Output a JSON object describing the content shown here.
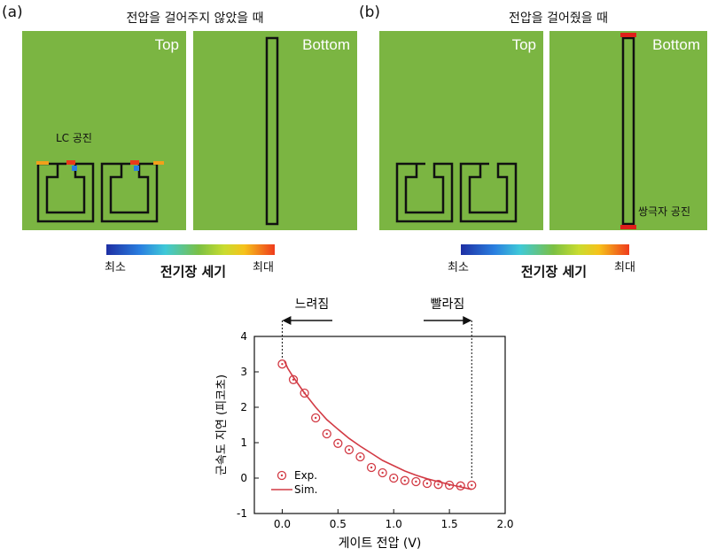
{
  "panel_a": {
    "label": "(a)",
    "title": "전압을 걸어주지 않았을 때",
    "top_tag": "Top",
    "bottom_tag": "Bottom",
    "annotation": "LC 공진",
    "colorbar": {
      "min_label": "최소",
      "max_label": "최대",
      "title": "전기장 세기"
    }
  },
  "panel_b": {
    "label": "(b)",
    "title": "전압을 걸어줬을 때",
    "top_tag": "Top",
    "bottom_tag": "Bottom",
    "annotation": "쌍극자 공진",
    "colorbar": {
      "min_label": "최소",
      "max_label": "최대",
      "title": "전기장 세기"
    }
  },
  "colors": {
    "field": "#7bb542",
    "curve": "#d23a44",
    "marker": "#d23a44"
  },
  "chart_data": {
    "type": "scatter",
    "xlabel": "게이트 전압 (V)",
    "ylabel": "군속도 지연 (피코초)",
    "xlim": [
      -0.25,
      2.0
    ],
    "ylim": [
      -1,
      4
    ],
    "xticks": [
      "0.0",
      "0.5",
      "1.0",
      "1.5",
      "2.0"
    ],
    "yticks": [
      "-1",
      "0",
      "1",
      "2",
      "3",
      "4"
    ],
    "annotations": {
      "slower": "느려짐",
      "faster": "빨라짐",
      "left_x": 0.0,
      "right_x": 1.7
    },
    "series": [
      {
        "name": "Exp.",
        "x": [
          0.0,
          0.1,
          0.2,
          0.3,
          0.4,
          0.5,
          0.6,
          0.7,
          0.8,
          0.9,
          1.0,
          1.1,
          1.2,
          1.3,
          1.4,
          1.5,
          1.6,
          1.7
        ],
        "y": [
          3.22,
          2.78,
          2.4,
          1.7,
          1.25,
          0.98,
          0.8,
          0.6,
          0.3,
          0.15,
          0.0,
          -0.07,
          -0.1,
          -0.15,
          -0.18,
          -0.2,
          -0.22,
          -0.2
        ]
      },
      {
        "name": "Sim.",
        "x": [
          0.02,
          0.05,
          0.1,
          0.2,
          0.3,
          0.4,
          0.5,
          0.6,
          0.7,
          0.8,
          0.9,
          1.0,
          1.1,
          1.2,
          1.3,
          1.4,
          1.5,
          1.6,
          1.7
        ],
        "y": [
          3.3,
          3.1,
          2.85,
          2.4,
          2.0,
          1.65,
          1.38,
          1.12,
          0.9,
          0.7,
          0.5,
          0.35,
          0.2,
          0.08,
          -0.02,
          -0.1,
          -0.18,
          -0.25,
          -0.32
        ]
      }
    ]
  }
}
